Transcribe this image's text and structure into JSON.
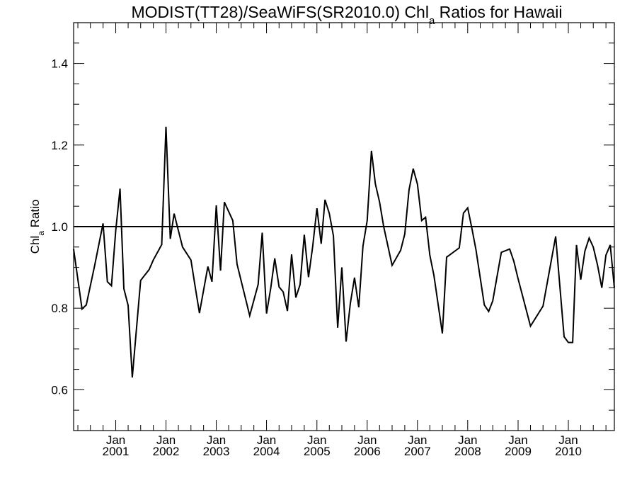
{
  "chart_data": {
    "type": "line",
    "title": {
      "prefix": "MODIST(TT28)/SeaWiFS(SR2010.0)  Chl",
      "subscript": "a",
      "suffix": " Ratios for Hawaii"
    },
    "xlabel": "",
    "ylabel": {
      "prefix": "Chl",
      "subscript": "a",
      "suffix": " Ratio"
    },
    "ylim": [
      0.5,
      1.5
    ],
    "y_ticks": [
      0.6,
      0.8,
      1.0,
      1.2,
      1.4
    ],
    "y_tick_labels": [
      "0.6",
      "0.8",
      "1.0",
      "1.2",
      "1.4"
    ],
    "xlim": [
      "2000-03-01",
      "2010-12-01"
    ],
    "x_ticks": [
      {
        "month": "Jan",
        "year": "2001",
        "date": "2001-01-01"
      },
      {
        "month": "Jan",
        "year": "2002",
        "date": "2002-01-01"
      },
      {
        "month": "Jan",
        "year": "2003",
        "date": "2003-01-01"
      },
      {
        "month": "Jan",
        "year": "2004",
        "date": "2004-01-01"
      },
      {
        "month": "Jan",
        "year": "2005",
        "date": "2005-01-01"
      },
      {
        "month": "Jan",
        "year": "2006",
        "date": "2006-01-01"
      },
      {
        "month": "Jan",
        "year": "2007",
        "date": "2007-01-01"
      },
      {
        "month": "Jan",
        "year": "2008",
        "date": "2008-01-01"
      },
      {
        "month": "Jan",
        "year": "2009",
        "date": "2009-01-01"
      },
      {
        "month": "Jan",
        "year": "2010",
        "date": "2010-01-01"
      }
    ],
    "reference_line": 1.0,
    "grid": false,
    "series": [
      {
        "x": [
          "2000-03-01",
          "2000-05-01",
          "2000-06-01",
          "2000-08-01",
          "2000-10-01",
          "2000-11-01",
          "2000-12-01",
          "2001-01-01",
          "2001-02-01",
          "2001-03-01",
          "2001-04-01",
          "2001-05-01",
          "2001-07-01",
          "2001-09-01",
          "2001-10-01",
          "2001-12-01",
          "2002-01-01",
          "2002-02-01",
          "2002-03-01",
          "2002-05-01",
          "2002-07-01",
          "2002-08-01",
          "2002-09-01",
          "2002-11-01",
          "2002-12-01",
          "2003-01-01",
          "2003-02-01",
          "2003-03-01",
          "2003-05-01",
          "2003-06-01",
          "2003-09-01",
          "2003-11-01",
          "2003-12-01",
          "2004-01-01",
          "2004-02-01",
          "2004-03-01",
          "2004-04-01",
          "2004-05-01",
          "2004-06-01",
          "2004-07-01",
          "2004-08-01",
          "2004-09-01",
          "2004-10-01",
          "2004-11-01",
          "2004-12-01",
          "2005-01-01",
          "2005-02-01",
          "2005-03-01",
          "2005-04-01",
          "2005-05-01",
          "2005-06-01",
          "2005-07-01",
          "2005-08-01",
          "2005-09-01",
          "2005-10-01",
          "2005-11-01",
          "2005-12-01",
          "2006-01-01",
          "2006-02-01",
          "2006-03-01",
          "2006-04-01",
          "2006-05-01",
          "2006-07-01",
          "2006-09-01",
          "2006-10-01",
          "2006-11-01",
          "2006-12-01",
          "2007-01-01",
          "2007-02-01",
          "2007-03-01",
          "2007-04-01",
          "2007-05-01",
          "2007-07-01",
          "2007-08-01",
          "2007-11-01",
          "2007-12-01",
          "2008-01-01",
          "2008-02-01",
          "2008-03-01",
          "2008-05-01",
          "2008-06-01",
          "2008-07-01",
          "2008-09-01",
          "2008-11-01",
          "2008-12-01",
          "2009-01-01",
          "2009-04-01",
          "2009-07-01",
          "2009-10-01",
          "2009-12-01",
          "2010-01-01",
          "2010-02-01",
          "2010-03-01",
          "2010-04-01",
          "2010-05-01",
          "2010-06-01",
          "2010-07-01",
          "2010-08-01",
          "2010-09-01",
          "2010-10-01",
          "2010-11-01",
          "2010-12-01"
        ],
        "values": [
          0.945,
          0.798,
          0.808,
          0.905,
          1.008,
          0.865,
          0.855,
          0.99,
          1.093,
          0.848,
          0.807,
          0.63,
          0.868,
          0.895,
          0.918,
          0.956,
          1.245,
          0.97,
          1.032,
          0.95,
          0.918,
          0.852,
          0.788,
          0.902,
          0.865,
          1.052,
          0.892,
          1.06,
          1.015,
          0.908,
          0.782,
          0.858,
          0.985,
          0.787,
          0.85,
          0.922,
          0.852,
          0.84,
          0.793,
          0.932,
          0.826,
          0.858,
          0.98,
          0.876,
          0.95,
          1.045,
          0.958,
          1.066,
          1.032,
          0.977,
          0.752,
          0.9,
          0.718,
          0.812,
          0.875,
          0.802,
          0.952,
          1.015,
          1.186,
          1.105,
          1.06,
          1.0,
          0.905,
          0.942,
          0.982,
          1.09,
          1.142,
          1.104,
          1.015,
          1.023,
          0.93,
          0.88,
          0.738,
          0.925,
          0.948,
          1.033,
          1.046,
          0.995,
          0.943,
          0.808,
          0.792,
          0.818,
          0.937,
          0.945,
          0.915,
          0.872,
          0.756,
          0.805,
          0.976,
          0.73,
          0.716,
          0.716,
          0.955,
          0.87,
          0.94,
          0.972,
          0.95,
          0.905,
          0.85,
          0.93,
          0.955,
          0.85
        ]
      }
    ]
  }
}
